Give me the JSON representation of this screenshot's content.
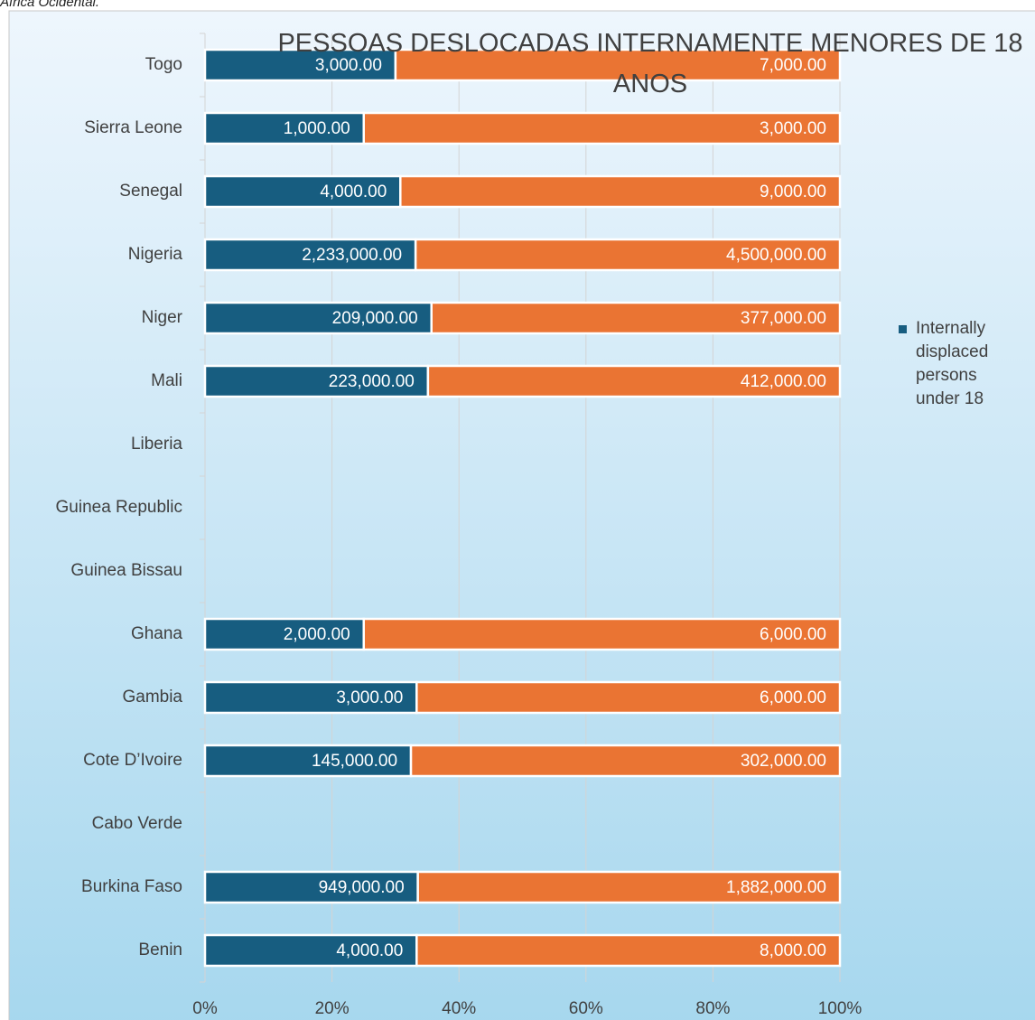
{
  "caption": "África Ocidental.",
  "chart_data": {
    "type": "bar100h",
    "title": "PESSOAS DESLOCADAS INTERNAMENTE MENORES DE 18 ANOS",
    "categories": [
      "Togo",
      "Sierra Leone",
      "Senegal",
      "Nigeria",
      "Niger",
      "Mali",
      "Liberia",
      "Guinea Republic",
      "Guinea Bissau",
      "Ghana",
      "Gambia",
      "Cote D’Ivoire",
      "Cabo Verde",
      "Burkina Faso",
      "Benin"
    ],
    "series": [
      {
        "name": "Internally displaced persons under 18",
        "color": "#175d80",
        "values": [
          3000,
          1000,
          4000,
          2233000,
          209000,
          223000,
          null,
          null,
          null,
          2000,
          3000,
          145000,
          null,
          949000,
          4000
        ],
        "value_labels": [
          "3,000.00",
          "1,000.00",
          "4,000.00",
          "2,233,000.00",
          "209,000.00",
          "223,000.00",
          null,
          null,
          null,
          "2,000.00",
          "3,000.00",
          "145,000.00",
          null,
          "949,000.00",
          "4,000.00"
        ]
      },
      {
        "color": "#ea7433",
        "values": [
          7000,
          3000,
          9000,
          4500000,
          377000,
          412000,
          null,
          null,
          null,
          6000,
          6000,
          302000,
          null,
          1882000,
          8000
        ],
        "value_labels": [
          "7,000.00",
          "3,000.00",
          "9,000.00",
          "4,500,000.00",
          "377,000.00",
          "412,000.00",
          null,
          null,
          null,
          "6,000.00",
          "6,000.00",
          "302,000.00",
          null,
          "1,882,000.00",
          "8,000.00"
        ]
      }
    ],
    "xlim": [
      0,
      100
    ],
    "xticks": [
      {
        "value": 0,
        "label": "0%"
      },
      {
        "value": 20,
        "label": "20%"
      },
      {
        "value": 40,
        "label": "40%"
      },
      {
        "value": 60,
        "label": "60%"
      },
      {
        "value": 80,
        "label": "80%"
      },
      {
        "value": 100,
        "label": "100%"
      }
    ],
    "grid": true
  }
}
